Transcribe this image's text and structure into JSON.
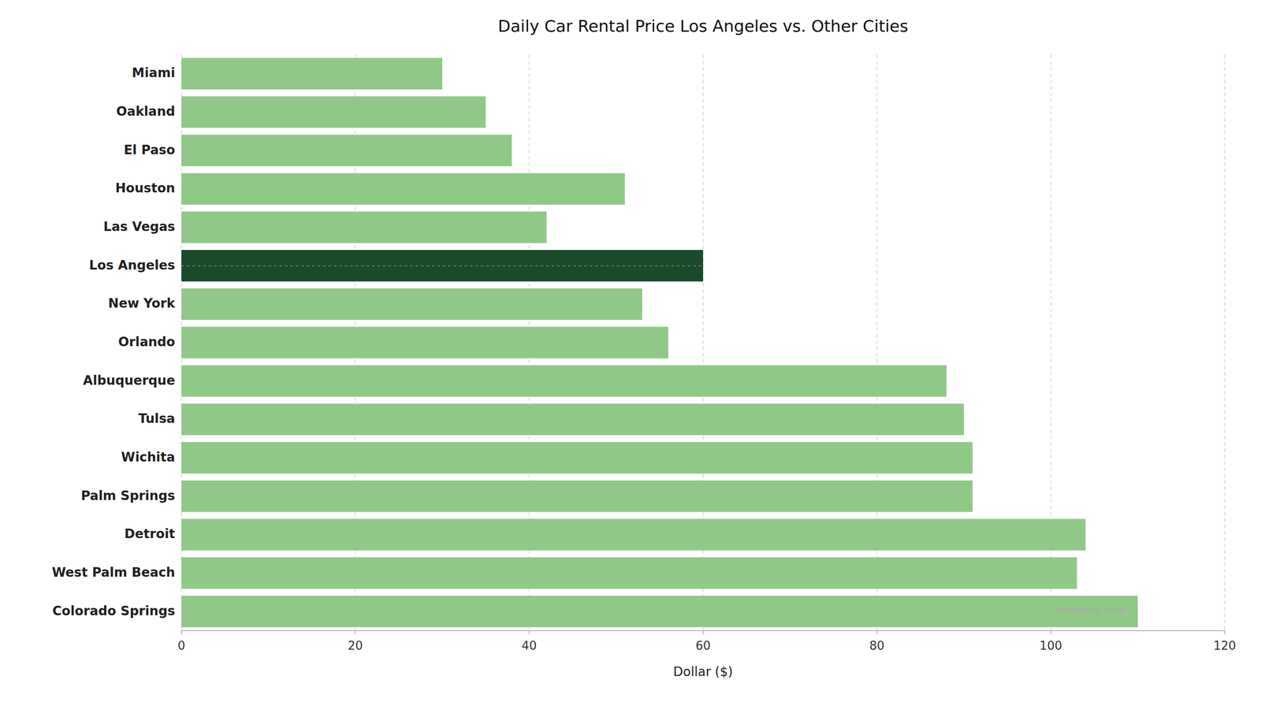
{
  "chart_data": {
    "type": "bar",
    "orientation": "horizontal",
    "title": "Daily Car Rental Price Los Angeles vs. Other Cities",
    "categories": [
      "Colorado Springs",
      "West Palm Beach",
      "Detroit",
      "Palm Springs",
      "Wichita",
      "Tulsa",
      "Albuquerque",
      "Orlando",
      "New York",
      "Los Angeles",
      "Las Vegas",
      "Houston",
      "El Paso",
      "Oakland",
      "Miami"
    ],
    "values": [
      110,
      103,
      104,
      91,
      91,
      90,
      88,
      56,
      53,
      60,
      42,
      51,
      38,
      35,
      30
    ],
    "colors": [
      "#90c987",
      "#90c987",
      "#90c987",
      "#90c987",
      "#90c987",
      "#90c987",
      "#90c987",
      "#90c987",
      "#90c987",
      "#1a4a2a",
      "#90c987",
      "#90c987",
      "#90c987",
      "#90c987",
      "#90c987"
    ],
    "x_label": "Dollar ($)",
    "xlim": [
      0,
      120
    ],
    "xticks": [
      0,
      20,
      40,
      60,
      80,
      100,
      120
    ],
    "grid": true,
    "annotations": [
      "rentalero.com"
    ]
  }
}
